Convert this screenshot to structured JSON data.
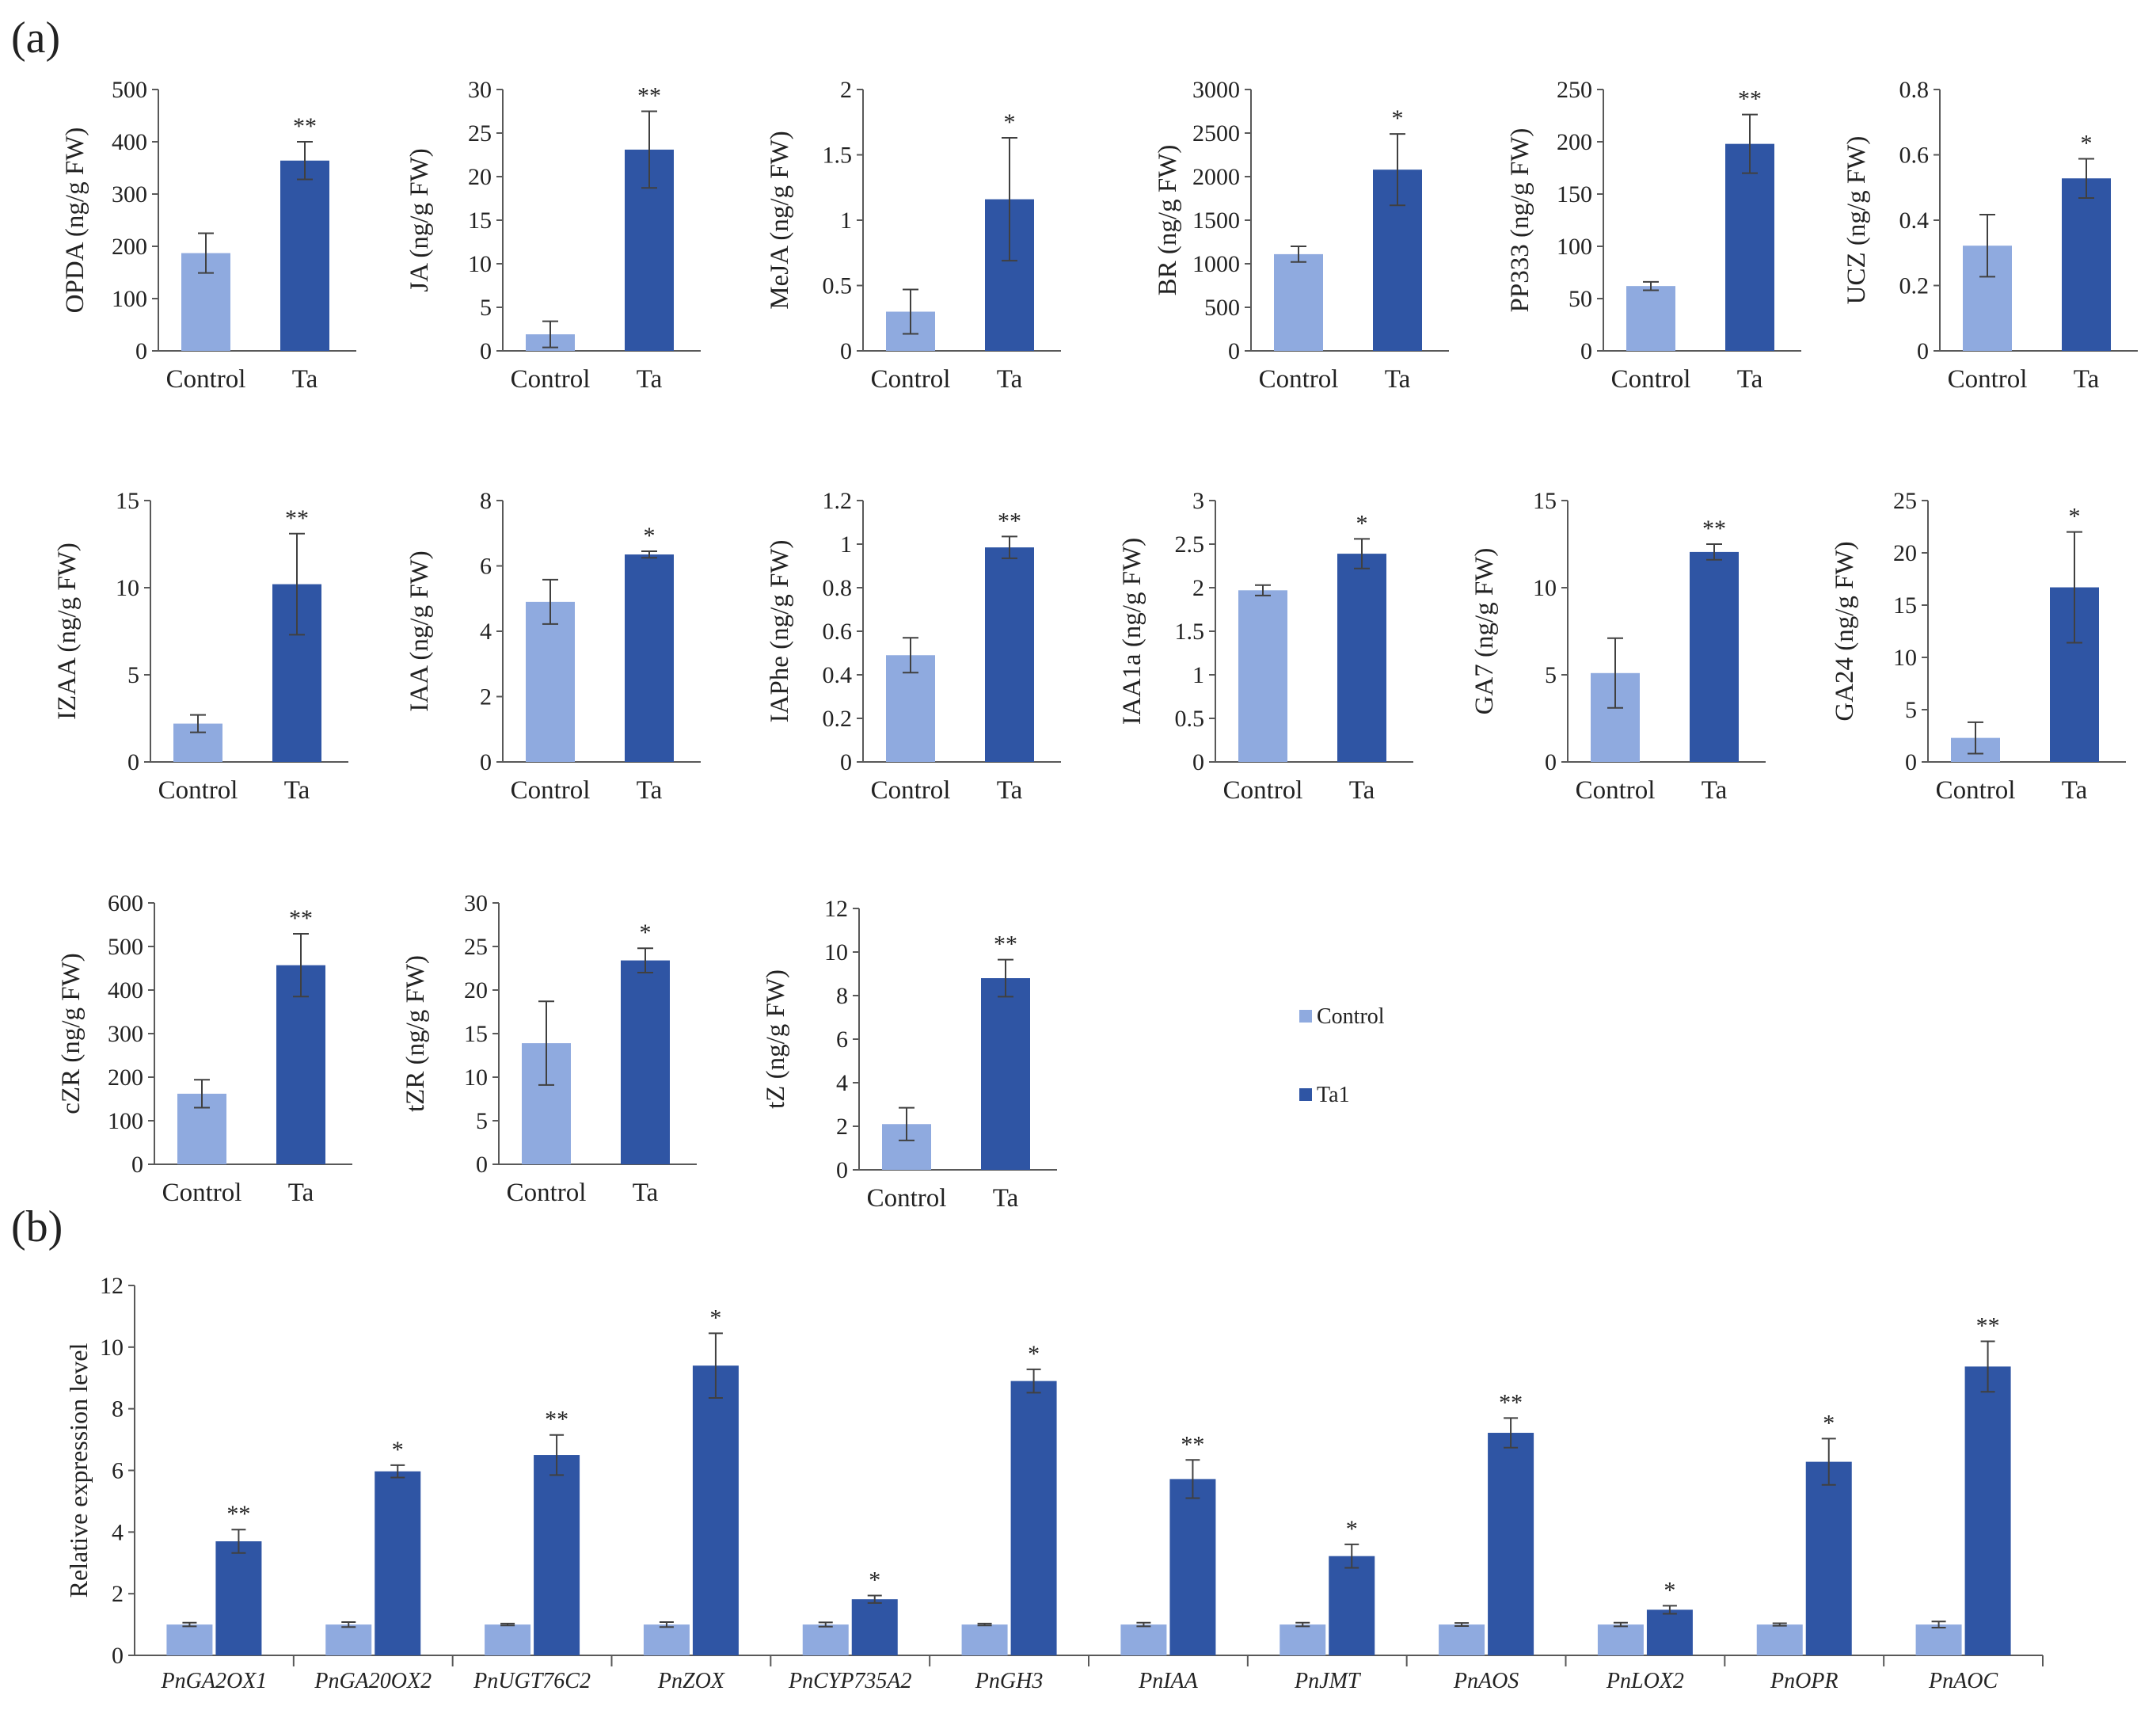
{
  "panel_labels": {
    "a": "(a)",
    "b": "(b)"
  },
  "colors": {
    "control": "#8FAADF",
    "ta": "#2F55A4",
    "axis": "#595959",
    "error": "#404040"
  },
  "legend": {
    "control": "Control",
    "ta": "Ta1"
  },
  "chart_data": [
    {
      "id": "OPDA",
      "type": "bar",
      "ylabel": "OPDA (ng/g FW)",
      "categories": [
        "Control",
        "Ta"
      ],
      "values": [
        187,
        364
      ],
      "errors": [
        38,
        36
      ],
      "yticks": [
        "0",
        "100",
        "200",
        "300",
        "400",
        "500"
      ],
      "ylim": [
        0,
        500
      ],
      "significance": "**"
    },
    {
      "id": "JA",
      "type": "bar",
      "ylabel": "JA (ng/g FW)",
      "categories": [
        "Control",
        "Ta"
      ],
      "values": [
        1.9,
        23.1
      ],
      "errors": [
        1.5,
        4.4
      ],
      "yticks": [
        "0",
        "5",
        "10",
        "15",
        "20",
        "25",
        "30"
      ],
      "ylim": [
        0,
        30
      ],
      "significance": "**"
    },
    {
      "id": "MeJA",
      "type": "bar",
      "ylabel": "MeJA (ng/g FW)",
      "categories": [
        "Control",
        "Ta"
      ],
      "values": [
        0.3,
        1.16
      ],
      "errors": [
        0.17,
        0.47
      ],
      "yticks": [
        "0",
        "0.5",
        "1",
        "1.5",
        "2"
      ],
      "ylim": [
        0,
        2
      ],
      "significance": "*"
    },
    {
      "id": "BR",
      "type": "bar",
      "ylabel": "BR (ng/g FW)",
      "categories": [
        "Control",
        "Ta"
      ],
      "values": [
        1110,
        2080
      ],
      "errors": [
        90,
        410
      ],
      "yticks": [
        "0",
        "500",
        "1000",
        "1500",
        "2000",
        "2500",
        "3000"
      ],
      "ylim": [
        0,
        3000
      ],
      "significance": "*"
    },
    {
      "id": "PP333",
      "type": "bar",
      "ylabel": "PP333 (ng/g FW)",
      "categories": [
        "Control",
        "Ta"
      ],
      "values": [
        62,
        198
      ],
      "errors": [
        4,
        28
      ],
      "yticks": [
        "0",
        "50",
        "100",
        "150",
        "200",
        "250"
      ],
      "ylim": [
        0,
        250
      ],
      "significance": "**"
    },
    {
      "id": "UCZ",
      "type": "bar",
      "ylabel": "UCZ (ng/g FW)",
      "categories": [
        "Control",
        "Ta"
      ],
      "values": [
        0.322,
        0.528
      ],
      "errors": [
        0.095,
        0.06
      ],
      "yticks": [
        "0",
        "0.2",
        "0.4",
        "0.6",
        "0.8"
      ],
      "ylim": [
        0,
        0.8
      ],
      "significance": "*"
    },
    {
      "id": "IZAA",
      "type": "bar",
      "ylabel": "IZAA (ng/g FW)",
      "categories": [
        "Control",
        "Ta"
      ],
      "values": [
        2.2,
        10.2
      ],
      "errors": [
        0.5,
        2.9
      ],
      "yticks": [
        "0",
        "5",
        "10",
        "15"
      ],
      "ylim": [
        0,
        15
      ],
      "significance": "**"
    },
    {
      "id": "IAA",
      "type": "bar",
      "ylabel": "IAA (ng/g FW)",
      "categories": [
        "Control",
        "Ta"
      ],
      "values": [
        4.9,
        6.35
      ],
      "errors": [
        0.68,
        0.1
      ],
      "yticks": [
        "0",
        "2",
        "4",
        "6",
        "8"
      ],
      "ylim": [
        0,
        8
      ],
      "significance": "*"
    },
    {
      "id": "IAPhe",
      "type": "bar",
      "ylabel": "IAPhe (ng/g FW)",
      "categories": [
        "Control",
        "Ta"
      ],
      "values": [
        0.49,
        0.985
      ],
      "errors": [
        0.08,
        0.05
      ],
      "yticks": [
        "0",
        "0.2",
        "0.4",
        "0.6",
        "0.8",
        "1",
        "1.2"
      ],
      "ylim": [
        0,
        1.2
      ],
      "significance": "**"
    },
    {
      "id": "IAA1a",
      "type": "bar",
      "ylabel": "IAA1a (ng/g FW)",
      "categories": [
        "Control",
        "Ta"
      ],
      "values": [
        1.97,
        2.39
      ],
      "errors": [
        0.06,
        0.17
      ],
      "yticks": [
        "0",
        "0.5",
        "1",
        "1.5",
        "2",
        "2.5",
        "3"
      ],
      "ylim": [
        0,
        3
      ],
      "significance": "*"
    },
    {
      "id": "GA7",
      "type": "bar",
      "ylabel": "GA7 (ng/g FW)",
      "categories": [
        "Control",
        "Ta"
      ],
      "values": [
        5.1,
        12.05
      ],
      "errors": [
        2.0,
        0.45
      ],
      "yticks": [
        "0",
        "5",
        "10",
        "15"
      ],
      "ylim": [
        0,
        15
      ],
      "significance": "**"
    },
    {
      "id": "GA24",
      "type": "bar",
      "ylabel": "GA24 (ng/g FW)",
      "categories": [
        "Control",
        "Ta"
      ],
      "values": [
        2.3,
        16.7
      ],
      "errors": [
        1.5,
        5.3
      ],
      "yticks": [
        "0",
        "5",
        "10",
        "15",
        "20",
        "25"
      ],
      "ylim": [
        0,
        25
      ],
      "significance": "*"
    },
    {
      "id": "cZR",
      "type": "bar",
      "ylabel": "cZR (ng/g FW)",
      "categories": [
        "Control",
        "Ta"
      ],
      "values": [
        162,
        457
      ],
      "errors": [
        32,
        72
      ],
      "yticks": [
        "0",
        "100",
        "200",
        "300",
        "400",
        "500",
        "600"
      ],
      "ylim": [
        0,
        600
      ],
      "significance": "**"
    },
    {
      "id": "tZR",
      "type": "bar",
      "ylabel": "tZR (ng/g FW)",
      "categories": [
        "Control",
        "Ta"
      ],
      "values": [
        13.9,
        23.4
      ],
      "errors": [
        4.8,
        1.4
      ],
      "yticks": [
        "0",
        "5",
        "10",
        "15",
        "20",
        "25",
        "30"
      ],
      "ylim": [
        0,
        30
      ],
      "significance": "*"
    },
    {
      "id": "tZ",
      "type": "bar",
      "ylabel": "tZ (ng/g FW)",
      "categories": [
        "Control",
        "Ta"
      ],
      "values": [
        2.1,
        8.8
      ],
      "errors": [
        0.75,
        0.85
      ],
      "yticks": [
        "0",
        "2",
        "4",
        "6",
        "8",
        "10",
        "12"
      ],
      "ylim": [
        0,
        12
      ],
      "significance": "**"
    },
    {
      "id": "expression",
      "type": "bar",
      "ylabel": "Relative expression level",
      "yticks": [
        "0",
        "2",
        "4",
        "6",
        "8",
        "10",
        "12"
      ],
      "ylim": [
        0,
        12
      ],
      "categories": [
        "PnGA2OX1",
        "PnGA20OX2",
        "PnUGT76C2",
        "PnZOX",
        "PnCYP735A2",
        "PnGH3",
        "PnIAA",
        "PnJMT",
        "PnAOS",
        "PnLOX2",
        "PnOPR",
        "PnAOC"
      ],
      "series": [
        {
          "name": "Control",
          "values": [
            1.0,
            1.0,
            1.0,
            1.0,
            1.0,
            1.0,
            1.0,
            1.0,
            1.0,
            1.0,
            1.0,
            1.0
          ],
          "errors": [
            0.06,
            0.08,
            0.03,
            0.08,
            0.07,
            0.03,
            0.06,
            0.06,
            0.05,
            0.06,
            0.04,
            0.1
          ]
        },
        {
          "name": "Ta1",
          "values": [
            3.7,
            5.97,
            6.5,
            9.4,
            1.82,
            8.9,
            5.72,
            3.22,
            7.22,
            1.48,
            6.28,
            9.37
          ],
          "errors": [
            0.38,
            0.2,
            0.65,
            1.05,
            0.12,
            0.38,
            0.62,
            0.38,
            0.48,
            0.13,
            0.75,
            0.82
          ]
        }
      ],
      "significance": [
        "**",
        "*",
        "**",
        "*",
        "*",
        "*",
        "**",
        "*",
        "**",
        "*",
        "*",
        "**"
      ]
    }
  ]
}
